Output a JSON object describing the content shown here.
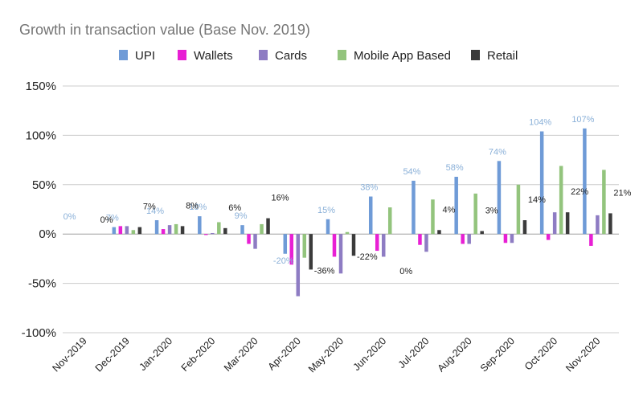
{
  "chart_data": {
    "type": "bar",
    "title": "Growth in transaction value (Base Nov. 2019)",
    "xlabel": "",
    "ylabel": "",
    "ylim": [
      -100,
      150
    ],
    "yticks": [
      -100,
      -50,
      0,
      50,
      100,
      150
    ],
    "ytick_labels": [
      "-100%",
      "-50%",
      "0%",
      "50%",
      "100%",
      "150%"
    ],
    "grid": true,
    "legend_position": "top",
    "categories": [
      "Nov-2019",
      "Dec-2019",
      "Jan-2020",
      "Feb-2020",
      "Mar-2020",
      "Apr-2020",
      "May-2020",
      "Jun-2020",
      "Jul-2020",
      "Aug-2020",
      "Sep-2020",
      "Oct-2020",
      "Nov-2020"
    ],
    "series": [
      {
        "name": "UPI",
        "color": "#6f9bd7",
        "label_color": "#8ab0d8",
        "show_labels": true,
        "values": [
          0,
          7,
          14,
          18,
          9,
          -20,
          15,
          38,
          54,
          58,
          74,
          104,
          107
        ],
        "labels": [
          "0%",
          "7%",
          "14%",
          "18%",
          "9%",
          "-20%",
          "15%",
          "38%",
          "54%",
          "58%",
          "74%",
          "104%",
          "107%"
        ]
      },
      {
        "name": "Wallets",
        "color": "#e81fd4",
        "label_color": "#e81fd4",
        "show_labels": false,
        "values": [
          0,
          8,
          5,
          -1,
          -10,
          -31,
          -23,
          -17,
          -11,
          -10,
          -9,
          -6,
          -12
        ]
      },
      {
        "name": "Cards",
        "color": "#8e7cc3",
        "label_color": "#8e7cc3",
        "show_labels": false,
        "values": [
          0,
          8,
          9,
          1,
          -15,
          -63,
          -40,
          -23,
          -18,
          -10,
          -9,
          22,
          19
        ]
      },
      {
        "name": "Mobile App Based",
        "color": "#93c47d",
        "label_color": "#93c47d",
        "show_labels": false,
        "values": [
          0,
          4,
          10,
          12,
          10,
          -24,
          2,
          27,
          35,
          41,
          50,
          69,
          65
        ]
      },
      {
        "name": "Retail",
        "color": "#3b3b3b",
        "label_color": "#222222",
        "show_labels": true,
        "values": [
          0,
          7,
          8,
          6,
          16,
          -36,
          -22,
          0,
          4,
          3,
          14,
          22,
          21
        ],
        "labels": [
          "0%",
          "7%",
          "8%",
          "6%",
          "16%",
          "-36%",
          "-22%",
          "0%",
          "4%",
          "3%",
          "14%",
          "22%",
          "21%"
        ]
      }
    ]
  }
}
